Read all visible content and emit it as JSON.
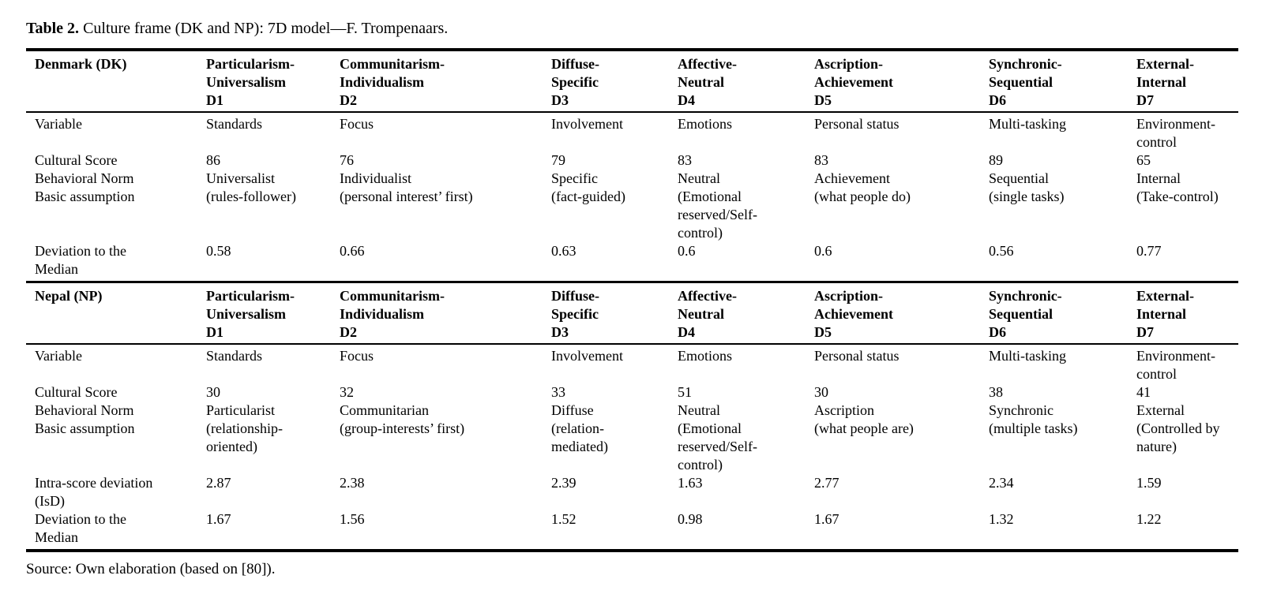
{
  "title": {
    "prefix": "Table 2.",
    "text": " Culture frame (DK and NP): 7D model—F. Trompenaars."
  },
  "sections": [
    {
      "country": "Denmark (DK)",
      "dims": [
        "Particularism-\nUniversalism\nD1",
        "Communitarism-\nIndividualism\nD2",
        "Diffuse-\nSpecific\nD3",
        "Affective-\nNeutral\nD4",
        "Ascription-\nAchievement\nD5",
        "Synchronic-\nSequential\nD6",
        "External-\nInternal\nD7"
      ],
      "rows": [
        [
          "Variable",
          "Standards",
          "Focus",
          "Involvement",
          "Emotions",
          "Personal status",
          "Multi-tasking",
          "Environment-\ncontrol"
        ],
        [
          "Cultural Score",
          "86",
          "76",
          "79",
          "83",
          "83",
          "89",
          "65"
        ],
        [
          "Behavioral Norm",
          "Universalist",
          "Individualist",
          "Specific",
          "Neutral",
          "Achievement",
          "Sequential",
          "Internal"
        ],
        [
          "Basic assumption",
          "(rules-follower)",
          "(personal interest’ first)",
          "(fact-guided)",
          "(Emotional\nreserved/Self-\ncontrol)",
          "(what people do)",
          "(single tasks)",
          "(Take-control)"
        ],
        [
          "Deviation to the\nMedian",
          "0.58",
          "0.66",
          "0.63",
          "0.6",
          "0.6",
          "0.56",
          "0.77"
        ]
      ]
    },
    {
      "country": "Nepal (NP)",
      "dims": [
        "Particularism-\nUniversalism\nD1",
        "Communitarism-\nIndividualism\nD2",
        "Diffuse-\nSpecific\nD3",
        "Affective-\nNeutral\nD4",
        "Ascription-\nAchievement\nD5",
        "Synchronic-\nSequential\nD6",
        "External-\nInternal\nD7"
      ],
      "rows": [
        [
          "Variable",
          "Standards",
          "Focus",
          "Involvement",
          "Emotions",
          "Personal status",
          "Multi-tasking",
          "Environment-\ncontrol"
        ],
        [
          "Cultural Score",
          "30",
          "32",
          "33",
          "51",
          "30",
          "38",
          "41"
        ],
        [
          "Behavioral Norm",
          "Particularist",
          "Communitarian",
          "Diffuse",
          "Neutral",
          "Ascription",
          "Synchronic",
          "External"
        ],
        [
          "Basic assumption",
          "(relationship-\noriented)",
          "(group-interests’ first)",
          "(relation-\nmediated)",
          "(Emotional\nreserved/Self-\ncontrol)",
          "(what people are)",
          "(multiple tasks)",
          "(Controlled by\nnature)"
        ],
        [
          "Intra-score deviation\n(IsD)",
          "2.87",
          "2.38",
          "2.39",
          "1.63",
          "2.77",
          "2.34",
          "1.59"
        ],
        [
          "Deviation to the\nMedian",
          "1.67",
          "1.56",
          "1.52",
          "0.98",
          "1.67",
          "1.32",
          "1.22"
        ]
      ]
    }
  ],
  "source": "Source: Own elaboration (based on [80])."
}
